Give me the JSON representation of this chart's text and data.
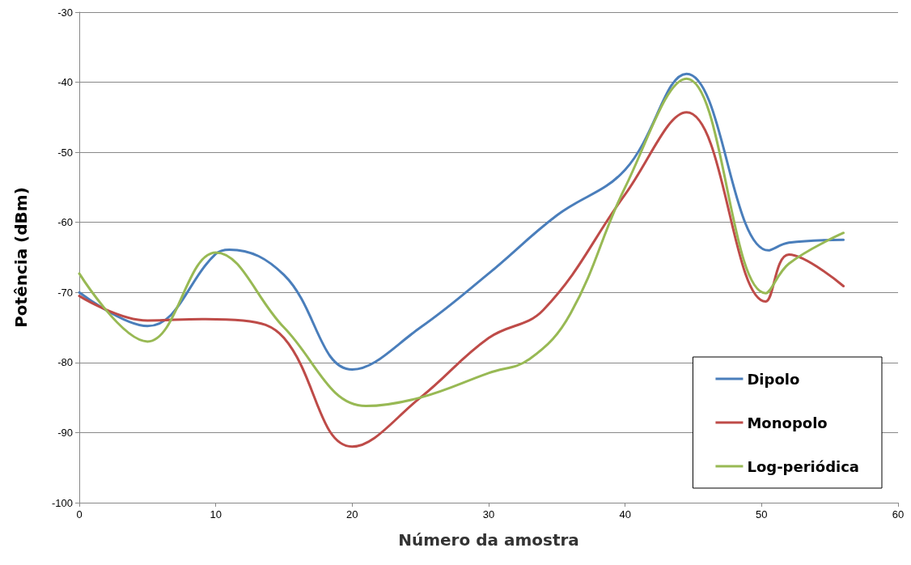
{
  "chart_data": {
    "type": "line",
    "xlabel": "Número da amostra",
    "ylabel": "Potência (dBm)",
    "xlim": [
      0,
      60
    ],
    "xticks": [
      0,
      10,
      20,
      30,
      40,
      50,
      60
    ],
    "ylim": [
      -100,
      -30
    ],
    "yticks": [
      -100,
      -90,
      -80,
      -70,
      -60,
      -50,
      -40,
      -30
    ],
    "grid": "y",
    "legend": "bottom right",
    "marker": "none",
    "line_style": "solid",
    "series": [
      {
        "name": "Dipolo",
        "color": "#4a7ebb",
        "x": [
          0,
          5,
          10,
          11,
          15,
          20,
          25,
          30,
          35,
          40,
          44.5,
          50.5,
          52,
          56
        ],
        "values": [
          -70,
          -74.8,
          -64.5,
          -63.9,
          -67.5,
          -81,
          -75,
          -67.3,
          -59,
          -52.5,
          -38.8,
          -64,
          -62.9,
          -62.5
        ]
      },
      {
        "name": "Monopolo",
        "color": "#be4b48",
        "x": [
          0,
          5,
          9,
          12,
          15,
          20,
          25,
          30,
          34,
          40,
          44.5,
          50.3,
          52,
          56
        ],
        "values": [
          -70.5,
          -74,
          -73.8,
          -74,
          -76.5,
          -92,
          -85,
          -76.5,
          -72.5,
          -56,
          -44.3,
          -71.3,
          -64.6,
          -69.1
        ]
      },
      {
        "name": "Log-periódica",
        "color": "#98b954",
        "x": [
          0,
          5,
          10,
          15,
          21,
          25,
          30,
          33,
          36,
          40,
          44.5,
          50.3,
          52,
          56
        ],
        "values": [
          -67.3,
          -77,
          -64.3,
          -75,
          -86.2,
          -85,
          -81.5,
          -79.5,
          -73,
          -55,
          -39.5,
          -70.1,
          -65.9,
          -61.5
        ]
      }
    ]
  }
}
